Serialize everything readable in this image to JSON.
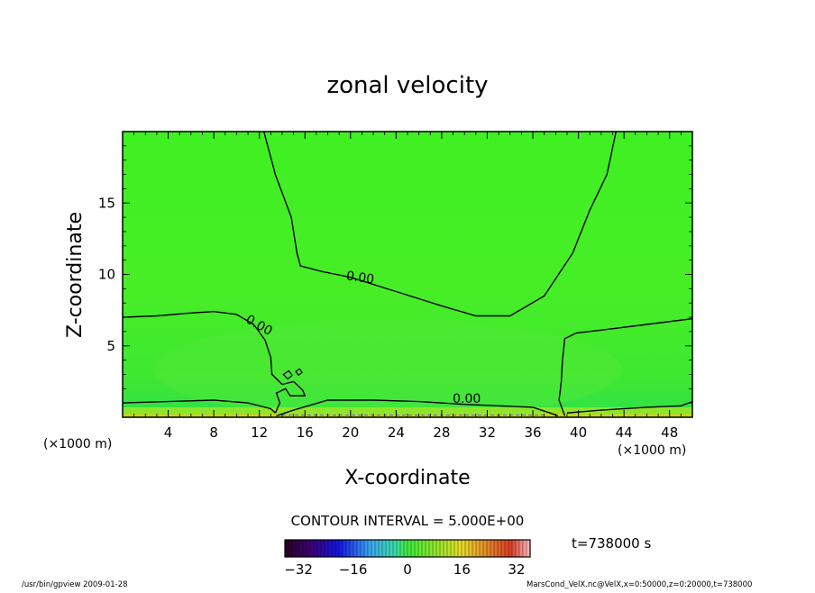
{
  "chart_data": {
    "type": "heatmap",
    "title": "zonal velocity",
    "xlabel": "X-coordinate",
    "ylabel": "Z-coordinate",
    "x_unit": "(×1000 m)",
    "y_unit": "(×1000 m)",
    "xlim": [
      0,
      50
    ],
    "ylim": [
      0,
      20
    ],
    "x_ticks": [
      4,
      8,
      12,
      16,
      20,
      24,
      28,
      32,
      36,
      40,
      44,
      48
    ],
    "y_ticks": [
      5,
      10,
      15
    ],
    "contour_interval_text": "CONTOUR INTERVAL = 5.000E+00",
    "contour_labels": [
      {
        "text": "0.00",
        "x": 20.8,
        "y": 9.5
      },
      {
        "text": "0.00",
        "x": 11.8,
        "y": 6.2
      },
      {
        "text": "0.00",
        "x": 30.2,
        "y": 1.0
      }
    ],
    "zero_contours": [
      [
        [
          12.4,
          20
        ],
        [
          13.4,
          17
        ],
        [
          14.8,
          14
        ],
        [
          15.3,
          11.5
        ],
        [
          15.6,
          10.6
        ],
        [
          17.5,
          10.2
        ],
        [
          20,
          9.8
        ],
        [
          24,
          8.8
        ],
        [
          28,
          7.8
        ],
        [
          31,
          7.1
        ],
        [
          34,
          7.1
        ],
        [
          37,
          8.5
        ],
        [
          39.5,
          11.5
        ],
        [
          41,
          14.5
        ],
        [
          42.5,
          17
        ],
        [
          43.3,
          20
        ]
      ],
      [
        [
          0,
          7.0
        ],
        [
          3,
          7.1
        ],
        [
          6,
          7.3
        ],
        [
          8,
          7.4
        ],
        [
          10,
          7.2
        ],
        [
          11.5,
          6.5
        ],
        [
          12.5,
          5.4
        ],
        [
          13,
          4.2
        ],
        [
          13.1,
          3.0
        ],
        [
          14,
          2.3
        ],
        [
          15,
          2.5
        ],
        [
          15.8,
          1.9
        ],
        [
          16,
          1.5
        ],
        [
          14.7,
          1.5
        ],
        [
          14.3,
          2.0
        ],
        [
          13.5,
          1.7
        ],
        [
          13.8,
          1.0
        ],
        [
          13.4,
          0.3
        ]
      ],
      [
        [
          0,
          1.0
        ],
        [
          4,
          1.1
        ],
        [
          8,
          1.2
        ],
        [
          11,
          1.0
        ],
        [
          13,
          0.6
        ],
        [
          13.4,
          0.3
        ]
      ],
      [
        [
          13.5,
          0.1
        ],
        [
          15,
          0.5
        ],
        [
          18,
          1.2
        ],
        [
          22,
          1.2
        ],
        [
          26,
          1.1
        ],
        [
          30,
          0.9
        ],
        [
          33,
          0.8
        ],
        [
          36,
          0.7
        ],
        [
          37.5,
          0.3
        ],
        [
          38.2,
          0.1
        ]
      ],
      [
        [
          38.8,
          0.1
        ],
        [
          38.3,
          1.2
        ],
        [
          38.5,
          2.5
        ],
        [
          38.6,
          4.0
        ],
        [
          38.8,
          5.5
        ],
        [
          39.8,
          5.9
        ],
        [
          42,
          6.1
        ],
        [
          46,
          6.5
        ],
        [
          50,
          6.9
        ]
      ],
      [
        [
          39,
          0.3
        ],
        [
          42,
          0.5
        ],
        [
          46,
          0.7
        ],
        [
          49,
          0.8
        ],
        [
          50,
          1.1
        ]
      ]
    ],
    "colorbar": {
      "min": -36,
      "max": 36,
      "tick_labels": [
        -32,
        -16,
        0,
        16,
        32
      ]
    },
    "time_label": "t=738000 s"
  },
  "footer": {
    "left": "/usr/bin/gpview   2009-01-28",
    "right": "MarsCond_VelX.nc@VelX,x=0:50000,z=0:20000,t=738000"
  }
}
